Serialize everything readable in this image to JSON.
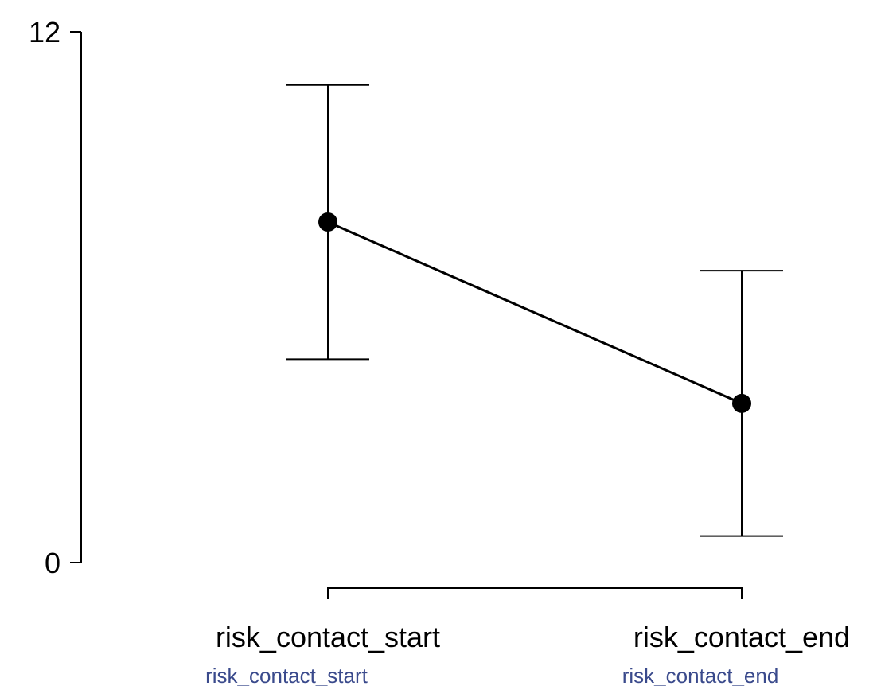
{
  "chart_data": {
    "type": "line",
    "title": "",
    "xlabel": "",
    "ylabel": "",
    "categories": [
      "risk_contact_start",
      "risk_contact_end"
    ],
    "category_sublabels": [
      "risk_contact_start",
      "risk_contact_end"
    ],
    "series": [
      {
        "values": [
          7.7,
          3.6
        ],
        "error_lower": [
          4.6,
          0.6
        ],
        "error_upper": [
          10.8,
          6.6
        ]
      }
    ],
    "ylim": [
      0,
      12
    ],
    "yticks": [
      0,
      12
    ],
    "ytick_labels": [
      "0",
      "12"
    ],
    "grid": false,
    "legend": "none",
    "colors": {
      "line": "#000000",
      "point": "#000000",
      "sublabel": "#3a4a8c"
    }
  }
}
